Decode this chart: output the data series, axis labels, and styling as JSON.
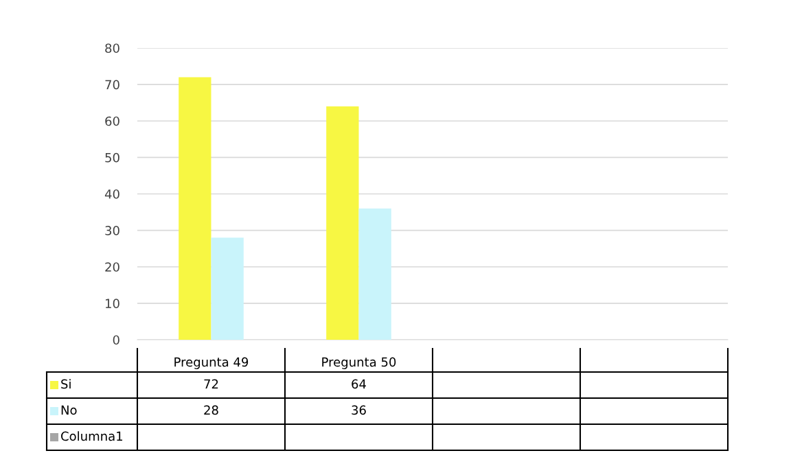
{
  "chart_data": {
    "type": "bar",
    "categories": [
      "Pregunta 49",
      "Pregunta 50",
      null,
      null
    ],
    "series": [
      {
        "name": "Si",
        "color": "#f7f743",
        "values": [
          72,
          64,
          null,
          null
        ]
      },
      {
        "name": "No",
        "color": "#c9f4fb",
        "values": [
          28,
          36,
          null,
          null
        ]
      },
      {
        "name": "Columna1",
        "color": "#a6a6a6",
        "values": [
          null,
          null,
          null,
          null
        ]
      }
    ],
    "ylim": [
      0,
      80
    ],
    "yticks": [
      0,
      10,
      20,
      30,
      40,
      50,
      60,
      70,
      80
    ],
    "grid": "y",
    "legend": "bottom",
    "data_labels": true
  }
}
